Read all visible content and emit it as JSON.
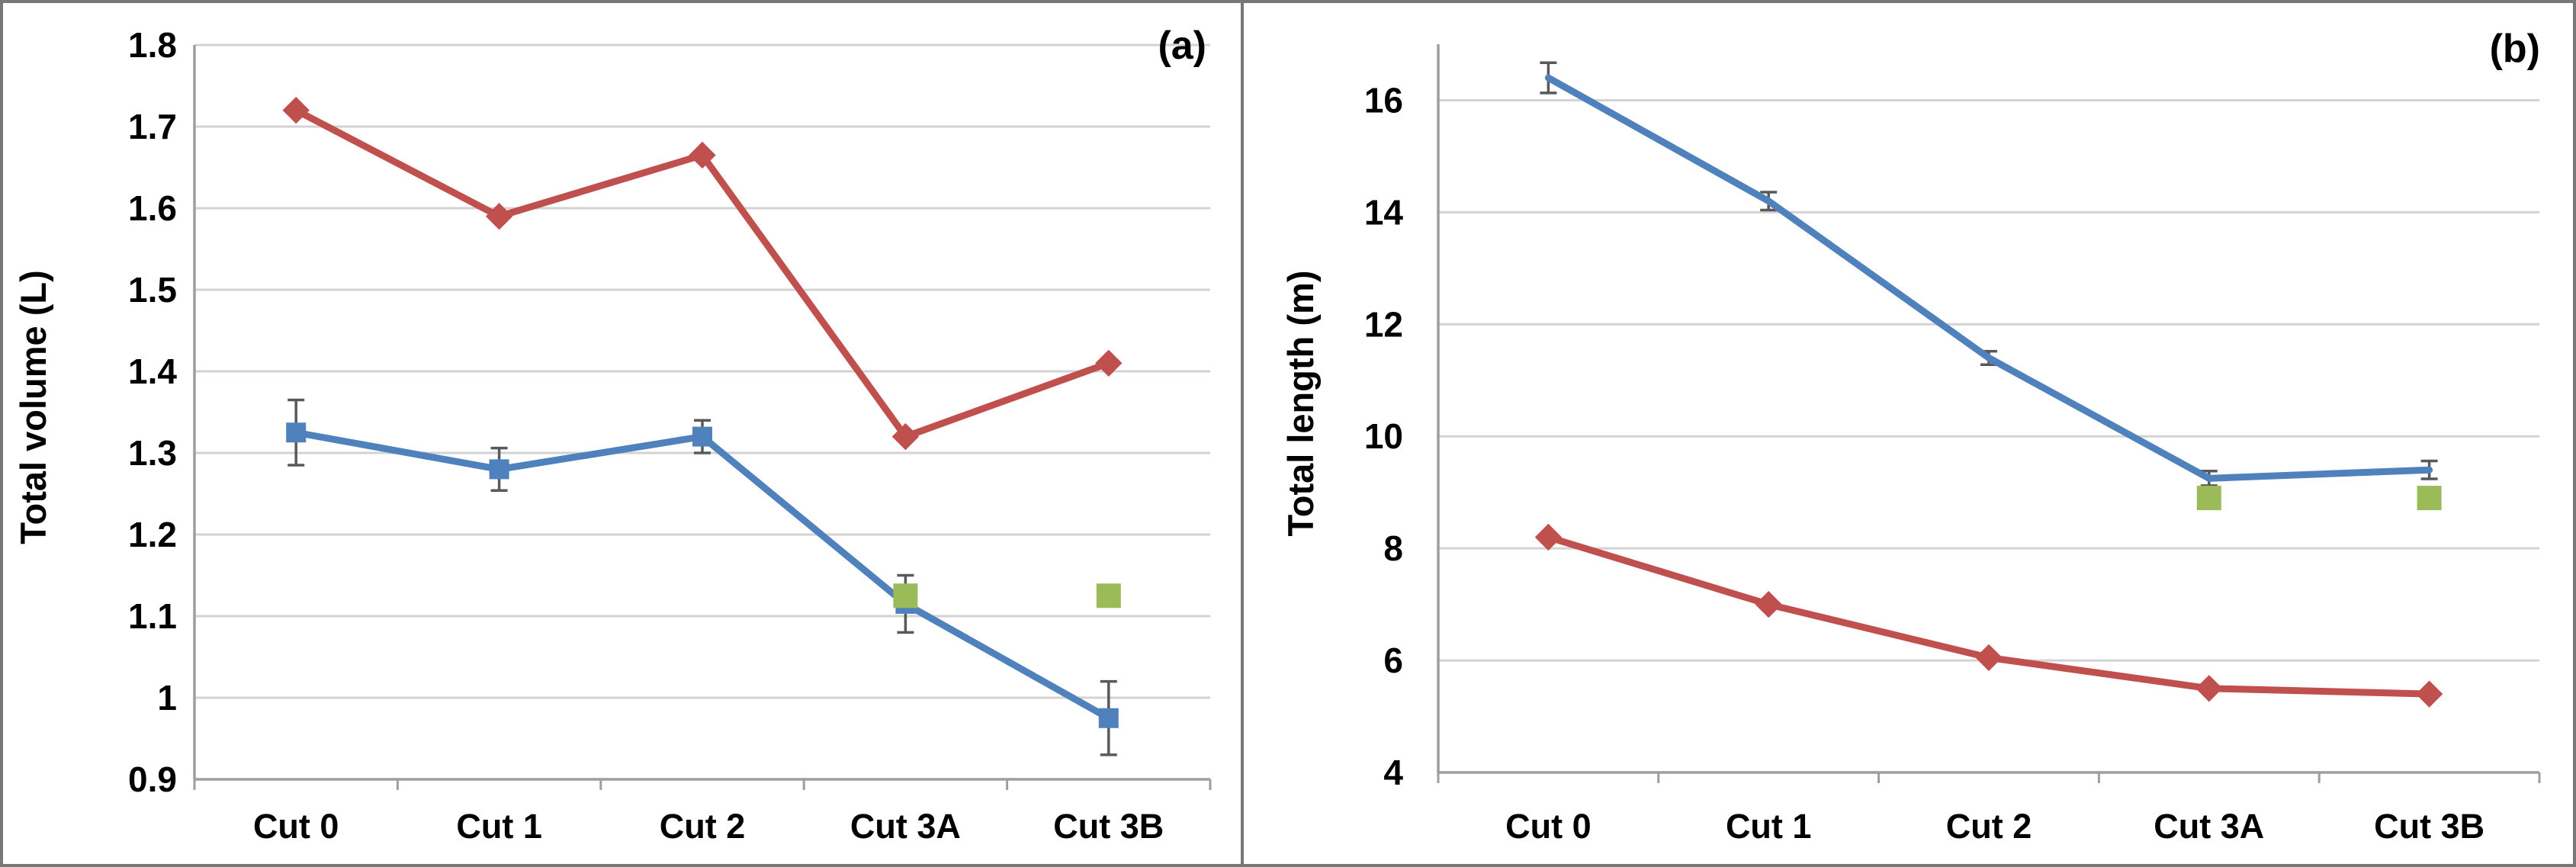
{
  "figure": {
    "description": "Two-panel line chart figure",
    "panels": [
      {
        "id": "a",
        "corner_label": "(a)"
      },
      {
        "id": "b",
        "corner_label": "(b)"
      }
    ]
  },
  "colors": {
    "red_series": "#C0504D",
    "blue_series": "#4F81BD",
    "green_series": "#9BBB59",
    "gridline": "#D3D3D3",
    "axis": "#9E9E9E",
    "error_bar": "#595959",
    "text": "#000000",
    "panel_border": "#787878"
  },
  "chart_data": [
    {
      "type": "line",
      "panel_label": "(a)",
      "title": "",
      "xlabel": "",
      "ylabel": "Total volume (L)",
      "categories": [
        "Cut 0",
        "Cut 1",
        "Cut 2",
        "Cut 3A",
        "Cut 3B"
      ],
      "ylim": [
        0.9,
        1.8
      ],
      "yticks": [
        0.9,
        1.0,
        1.1,
        1.2,
        1.3,
        1.4,
        1.5,
        1.6,
        1.7,
        1.8
      ],
      "ytick_labels": [
        "0.9",
        "1",
        "1.1",
        "1.2",
        "1.3",
        "1.4",
        "1.5",
        "1.6",
        "1.7",
        "1.8"
      ],
      "grid": true,
      "legend": "none",
      "top_gridline": true,
      "series": [
        {
          "name": "red-diamond",
          "color": "#C0504D",
          "marker": "diamond",
          "values": [
            1.72,
            1.59,
            1.665,
            1.32,
            1.41
          ]
        },
        {
          "name": "blue-square",
          "color": "#4F81BD",
          "marker": "square",
          "values": [
            1.325,
            1.28,
            1.32,
            1.115,
            0.975
          ],
          "errors": [
            0.04,
            0.026,
            0.02,
            0.035,
            0.045
          ]
        },
        {
          "name": "green-square",
          "color": "#9BBB59",
          "marker": "square-large",
          "line": false,
          "values": [
            null,
            null,
            null,
            1.125,
            1.125
          ]
        }
      ]
    },
    {
      "type": "line",
      "panel_label": "(b)",
      "title": "",
      "xlabel": "",
      "ylabel": "Total length (m)",
      "categories": [
        "Cut 0",
        "Cut 1",
        "Cut 2",
        "Cut 3A",
        "Cut 3B"
      ],
      "ylim": [
        4,
        17
      ],
      "yticks": [
        4,
        6,
        8,
        10,
        12,
        14,
        16
      ],
      "ytick_labels": [
        "4",
        "6",
        "8",
        "10",
        "12",
        "14",
        "16"
      ],
      "grid": true,
      "legend": "none",
      "top_gridline": false,
      "series": [
        {
          "name": "blue-line",
          "color": "#4F81BD",
          "marker": "none",
          "values": [
            16.4,
            14.2,
            11.4,
            9.25,
            9.4
          ],
          "errors": [
            0.27,
            0.16,
            0.12,
            0.13,
            0.16
          ]
        },
        {
          "name": "red-diamond",
          "color": "#C0504D",
          "marker": "diamond",
          "values": [
            8.2,
            7.0,
            6.05,
            5.5,
            5.4
          ]
        },
        {
          "name": "green-square",
          "color": "#9BBB59",
          "marker": "square-large",
          "line": false,
          "values": [
            null,
            null,
            null,
            8.9,
            8.9
          ]
        }
      ]
    }
  ]
}
